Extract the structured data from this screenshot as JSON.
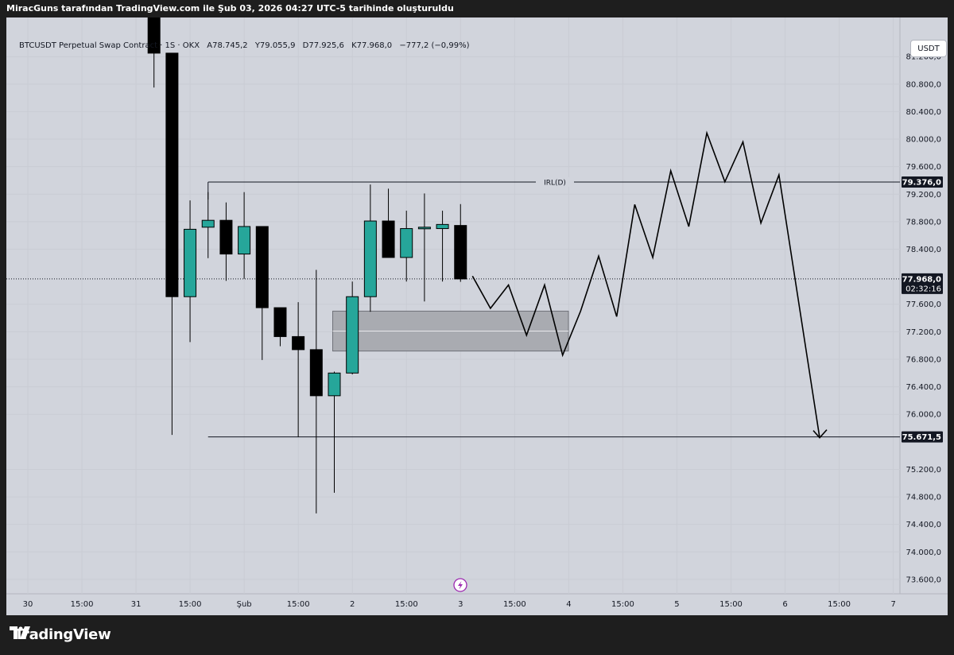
{
  "header": {
    "text": "MiracGuns tarafından TradingView.com ile Şub 03, 2026 04:27 UTC-5 tarihinde oluşturuldu"
  },
  "legend": {
    "symbol": "BTCUSDT Perpetual Swap Contract · 1S · OKX",
    "open": "A78.745,2",
    "high": "Y79.055,9",
    "low": "D77.925,6",
    "close": "K77.968,0",
    "change": "−777,2 (−0,99%)"
  },
  "currency_button": "USDT",
  "footer": {
    "brand": "TradingView"
  },
  "colors": {
    "up": "#26a69a",
    "down": "#000000",
    "background": "#d1d4dc",
    "zone": "#a9abb1"
  },
  "chart_data": {
    "type": "candlestick",
    "title": "BTCUSDT Perpetual Swap Contract",
    "xlabel": "",
    "ylabel": "",
    "ylim": [
      73400,
      81600
    ],
    "y_ticks": [
      73600,
      74000,
      74400,
      74800,
      75200,
      76000,
      76400,
      76800,
      77200,
      77600,
      78400,
      78800,
      79200,
      79600,
      80000,
      80400,
      80800,
      81200
    ],
    "y_tick_labels": [
      "73.600,0",
      "74.000,0",
      "74.400,0",
      "74.800,0",
      "75.200,0",
      "76.000,0",
      "76.400,0",
      "76.800,0",
      "77.200,0",
      "77.600,0",
      "78.400,0",
      "78.800,0",
      "79.200,0",
      "79.600,0",
      "80.000,0",
      "80.400,0",
      "80.800,0",
      "81.200,0"
    ],
    "x_ticks": [
      "30",
      "15:00",
      "31",
      "15:00",
      "Şub",
      "15:00",
      "2",
      "15:00",
      "3",
      "15:00",
      "4",
      "15:00",
      "5",
      "15:00",
      "6",
      "15:00",
      "7"
    ],
    "candles": [
      {
        "o": 82500,
        "h": 83500,
        "l": 80750,
        "c": 81250
      },
      {
        "o": 81250,
        "h": 81250,
        "l": 75700,
        "c": 77710
      },
      {
        "o": 77710,
        "h": 79110,
        "l": 77050,
        "c": 78690
      },
      {
        "o": 78720,
        "h": 79230,
        "l": 78270,
        "c": 78820
      },
      {
        "o": 78820,
        "h": 79080,
        "l": 77940,
        "c": 78330
      },
      {
        "o": 78330,
        "h": 79230,
        "l": 77970,
        "c": 78730
      },
      {
        "o": 78730,
        "h": 78730,
        "l": 76790,
        "c": 77550
      },
      {
        "o": 77550,
        "h": 77550,
        "l": 76990,
        "c": 77130
      },
      {
        "o": 77130,
        "h": 77630,
        "l": 75670,
        "c": 76940
      },
      {
        "o": 76940,
        "h": 78100,
        "l": 74560,
        "c": 76270
      },
      {
        "o": 76270,
        "h": 76620,
        "l": 74860,
        "c": 76600
      },
      {
        "o": 76600,
        "h": 77930,
        "l": 76580,
        "c": 77710
      },
      {
        "o": 77710,
        "h": 79340,
        "l": 77490,
        "c": 78810
      },
      {
        "o": 78810,
        "h": 79280,
        "l": 78280,
        "c": 78280
      },
      {
        "o": 78280,
        "h": 78960,
        "l": 77930,
        "c": 78700
      },
      {
        "o": 78700,
        "h": 79210,
        "l": 77640,
        "c": 78720
      },
      {
        "o": 78700,
        "h": 78960,
        "l": 77930,
        "c": 78760
      },
      {
        "o": 78745.2,
        "h": 79055.9,
        "l": 77925.6,
        "c": 77968
      }
    ],
    "annotations": {
      "irl_label": "IRL(D)",
      "irl_level": 79376,
      "irl_price_label": "79.376,0",
      "target_level": 75671.5,
      "target_price_label": "75.671,5",
      "current_price_label": "77.968,0",
      "countdown": "02:32:16",
      "zone": [
        76920,
        77500
      ],
      "projection": [
        78010,
        77540,
        77880,
        77150,
        77880,
        76860,
        77500,
        78300,
        77420,
        79050,
        78280,
        79540,
        78730,
        80090,
        79380,
        79960,
        78780,
        79480,
        75660
      ]
    }
  }
}
